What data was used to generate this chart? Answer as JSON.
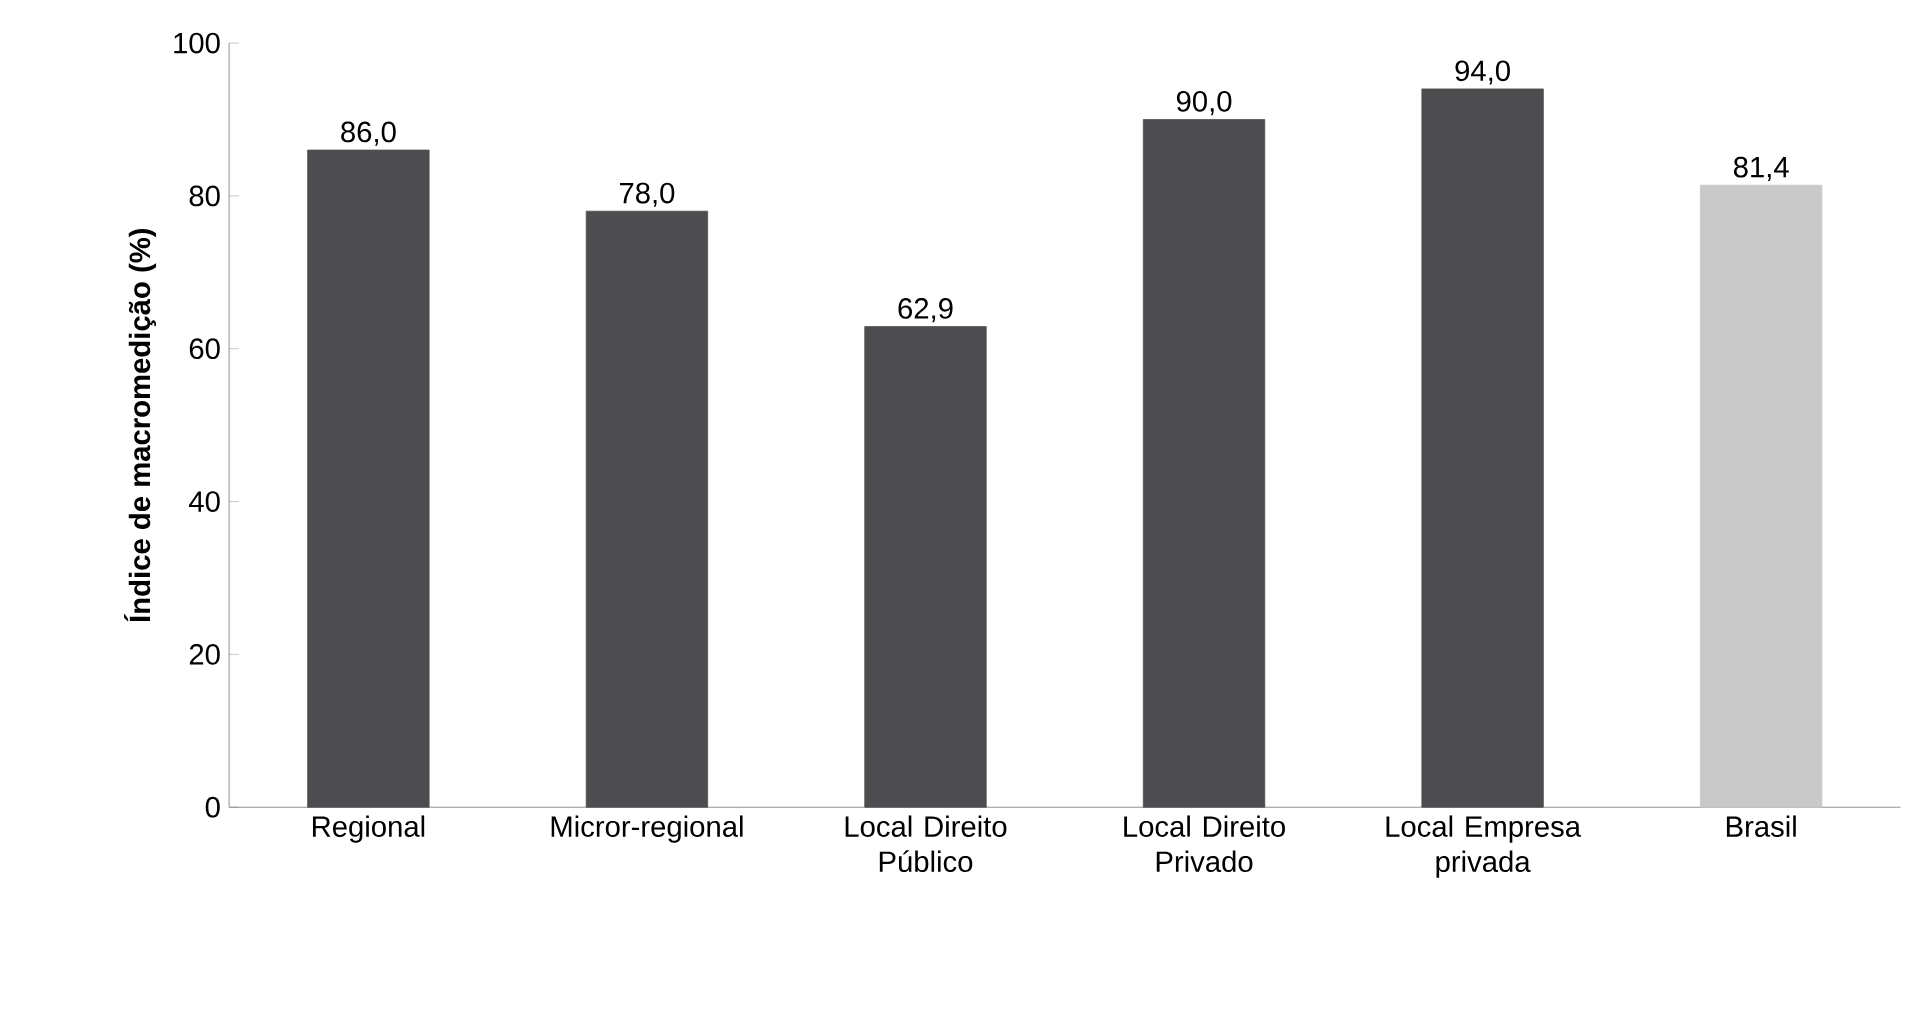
{
  "chart_data": {
    "type": "bar",
    "ylabel": "Índice de macromedição (%)",
    "categories": [
      "Regional",
      "Micror-regional",
      "Local Direito Público",
      "Local Direito Privado",
      "Local Empresa privada",
      "Brasil"
    ],
    "values": [
      86.0,
      78.0,
      62.9,
      90.0,
      94.0,
      81.4
    ],
    "colors": [
      "#4d4d4f",
      "#4d4d4f",
      "#4d4d4f",
      "#4d4d4f",
      "#4d4d4f",
      "#c9c9c9"
    ],
    "value_labels": [
      "86,0",
      "78,0",
      "62,9",
      "90,0",
      "94,0",
      "81,4"
    ],
    "ylim": [
      0,
      100
    ],
    "yticks": [
      0,
      20,
      40,
      60,
      80,
      100
    ],
    "grid": false
  }
}
